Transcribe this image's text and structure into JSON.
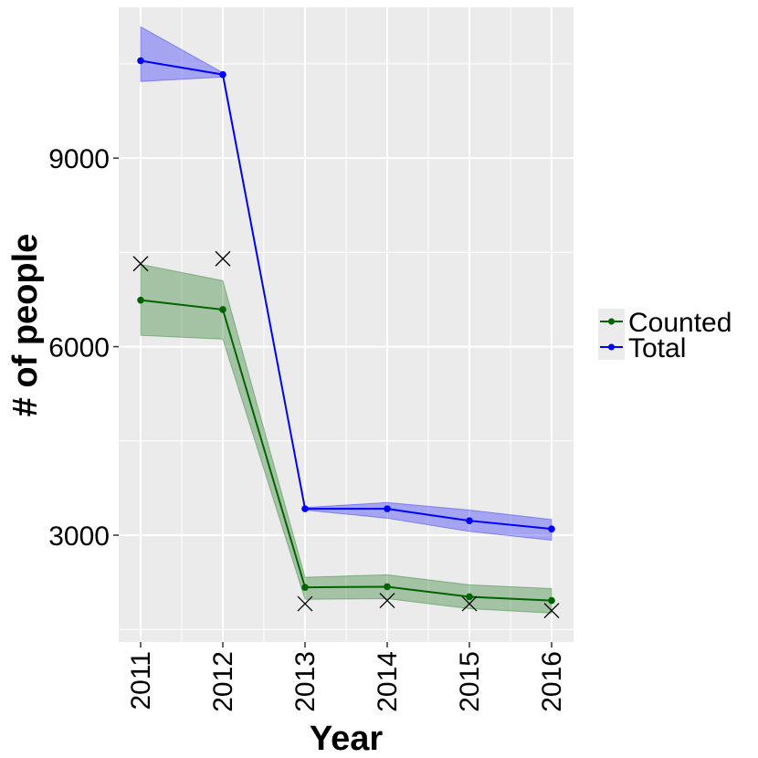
{
  "chart_data": {
    "type": "line",
    "xlabel": "Year",
    "ylabel": "# of people",
    "x": [
      2011,
      2012,
      2013,
      2014,
      2015,
      2016
    ],
    "x_tick_labels": [
      "2011",
      "2012",
      "2013",
      "2014",
      "2015",
      "2016"
    ],
    "ylim": [
      1300,
      11400
    ],
    "y_ticks": [
      3000,
      6000,
      9000
    ],
    "y_tick_labels": [
      "3000",
      "6000",
      "9000"
    ],
    "grid": true,
    "legend_position": "right",
    "series": [
      {
        "name": "Counted",
        "color": "#006400",
        "values": [
          6740,
          6590,
          2170,
          2180,
          2020,
          1960
        ],
        "lower": [
          6180,
          6120,
          1980,
          1990,
          1830,
          1760
        ],
        "upper": [
          7310,
          7050,
          2330,
          2370,
          2210,
          2150
        ]
      },
      {
        "name": "Total",
        "color": "#0000ff",
        "values": [
          10550,
          10330,
          3420,
          3420,
          3230,
          3100
        ],
        "lower": [
          10220,
          10290,
          3400,
          3270,
          3060,
          2920
        ],
        "upper": [
          11090,
          10360,
          3440,
          3520,
          3400,
          3250
        ]
      }
    ],
    "markers": {
      "symbol": "x",
      "color": "#000000",
      "points": [
        {
          "x": 2011,
          "y": 7320
        },
        {
          "x": 2012,
          "y": 7400
        },
        {
          "x": 2013,
          "y": 1910
        },
        {
          "x": 2014,
          "y": 1960
        },
        {
          "x": 2015,
          "y": 1910
        },
        {
          "x": 2016,
          "y": 1800
        }
      ]
    }
  },
  "legend": {
    "items": [
      {
        "label": "Counted",
        "color": "#006400"
      },
      {
        "label": "Total",
        "color": "#0000ff"
      }
    ]
  }
}
